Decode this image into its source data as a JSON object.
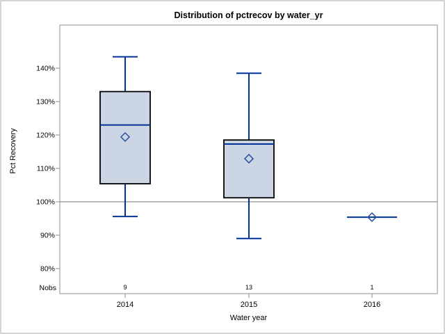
{
  "window": {
    "background": "#ffffff",
    "border_color": "#d4d4d4"
  },
  "chart_data": {
    "type": "boxplot",
    "title": "Distribution of pctrecov by water_yr",
    "xlabel": "Water year",
    "ylabel": "Pct Recovery",
    "categories": [
      "2014",
      "2015",
      "2016"
    ],
    "nobs_label": "Nobs",
    "nobs": [
      "9",
      "13",
      "1"
    ],
    "y_ticks": [
      140,
      130,
      120,
      110,
      100,
      90,
      80
    ],
    "y_tick_suffix": "%",
    "ylim": [
      72.5,
      153
    ],
    "reference_line": 100,
    "grid": false,
    "legend": "none",
    "series": [
      {
        "category": "2014",
        "n": 9,
        "whisker_low": 95.6,
        "q1": 105.4,
        "median": 123.0,
        "q3": 133.0,
        "whisker_high": 143.4,
        "mean": 119.4
      },
      {
        "category": "2015",
        "n": 13,
        "whisker_low": 89.0,
        "q1": 101.2,
        "median": 117.3,
        "q3": 118.5,
        "whisker_high": 138.5,
        "mean": 112.9
      },
      {
        "category": "2016",
        "n": 1,
        "whisker_low": 95.4,
        "q1": 95.4,
        "median": 95.4,
        "q3": 95.4,
        "whisker_high": 95.4,
        "mean": 95.4
      }
    ],
    "colors": {
      "box_fill": "#ccd5e3",
      "box_border": "#000000",
      "line": "#003399",
      "mean_marker": "#2b4ea2",
      "reference": "#a0a0a0",
      "frame": "#8a9094",
      "text": "#000000"
    }
  }
}
